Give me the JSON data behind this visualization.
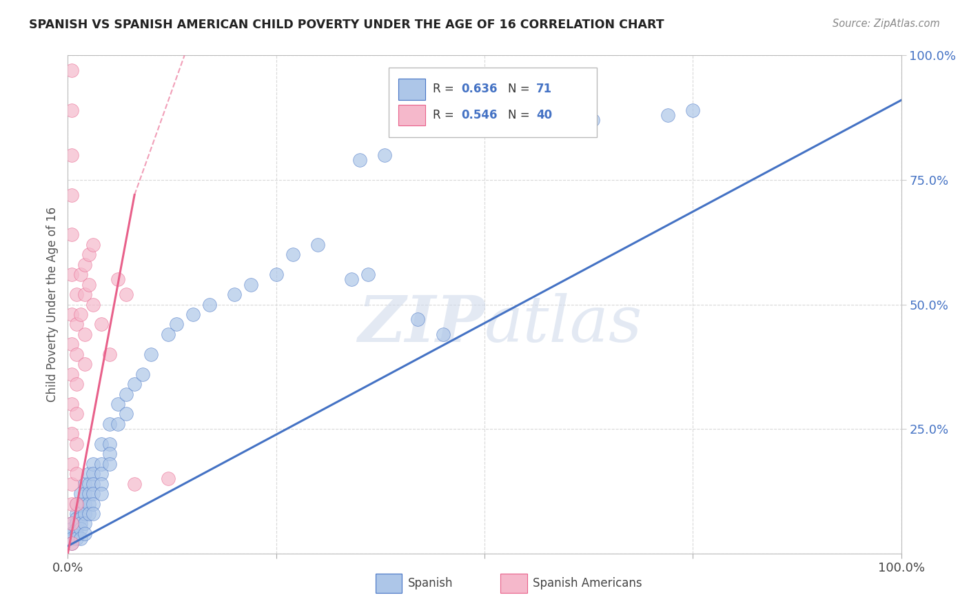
{
  "title": "SPANISH VS SPANISH AMERICAN CHILD POVERTY UNDER THE AGE OF 16 CORRELATION CHART",
  "source": "Source: ZipAtlas.com",
  "ylabel": "Child Poverty Under the Age of 16",
  "xlim": [
    0,
    1
  ],
  "ylim": [
    0,
    1
  ],
  "blue_R": 0.636,
  "blue_N": 71,
  "pink_R": 0.546,
  "pink_N": 40,
  "blue_color": "#adc6e8",
  "pink_color": "#f5b8cb",
  "blue_line_color": "#4472c4",
  "pink_line_color": "#e8608a",
  "background_color": "#ffffff",
  "grid_color": "#d8d8d8",
  "watermark_color": "#cdd8ea",
  "blue_scatter": [
    [
      0.005,
      0.06
    ],
    [
      0.005,
      0.05
    ],
    [
      0.005,
      0.04
    ],
    [
      0.005,
      0.03
    ],
    [
      0.005,
      0.02
    ],
    [
      0.01,
      0.1
    ],
    [
      0.01,
      0.08
    ],
    [
      0.01,
      0.07
    ],
    [
      0.01,
      0.06
    ],
    [
      0.01,
      0.05
    ],
    [
      0.01,
      0.04
    ],
    [
      0.01,
      0.03
    ],
    [
      0.015,
      0.12
    ],
    [
      0.015,
      0.1
    ],
    [
      0.015,
      0.08
    ],
    [
      0.015,
      0.07
    ],
    [
      0.015,
      0.06
    ],
    [
      0.015,
      0.05
    ],
    [
      0.015,
      0.03
    ],
    [
      0.02,
      0.14
    ],
    [
      0.02,
      0.12
    ],
    [
      0.02,
      0.1
    ],
    [
      0.02,
      0.08
    ],
    [
      0.02,
      0.06
    ],
    [
      0.02,
      0.04
    ],
    [
      0.025,
      0.16
    ],
    [
      0.025,
      0.14
    ],
    [
      0.025,
      0.12
    ],
    [
      0.025,
      0.1
    ],
    [
      0.025,
      0.08
    ],
    [
      0.03,
      0.18
    ],
    [
      0.03,
      0.16
    ],
    [
      0.03,
      0.14
    ],
    [
      0.03,
      0.12
    ],
    [
      0.03,
      0.1
    ],
    [
      0.03,
      0.08
    ],
    [
      0.04,
      0.22
    ],
    [
      0.04,
      0.18
    ],
    [
      0.04,
      0.16
    ],
    [
      0.04,
      0.14
    ],
    [
      0.04,
      0.12
    ],
    [
      0.05,
      0.26
    ],
    [
      0.05,
      0.22
    ],
    [
      0.05,
      0.2
    ],
    [
      0.05,
      0.18
    ],
    [
      0.06,
      0.3
    ],
    [
      0.06,
      0.26
    ],
    [
      0.07,
      0.32
    ],
    [
      0.07,
      0.28
    ],
    [
      0.08,
      0.34
    ],
    [
      0.09,
      0.36
    ],
    [
      0.1,
      0.4
    ],
    [
      0.12,
      0.44
    ],
    [
      0.13,
      0.46
    ],
    [
      0.15,
      0.48
    ],
    [
      0.17,
      0.5
    ],
    [
      0.2,
      0.52
    ],
    [
      0.22,
      0.54
    ],
    [
      0.25,
      0.56
    ],
    [
      0.27,
      0.6
    ],
    [
      0.3,
      0.62
    ],
    [
      0.35,
      0.79
    ],
    [
      0.38,
      0.8
    ],
    [
      0.6,
      0.86
    ],
    [
      0.63,
      0.87
    ],
    [
      0.72,
      0.88
    ],
    [
      0.75,
      0.89
    ],
    [
      0.34,
      0.55
    ],
    [
      0.36,
      0.56
    ],
    [
      0.42,
      0.47
    ],
    [
      0.45,
      0.44
    ]
  ],
  "pink_scatter": [
    [
      0.005,
      0.97
    ],
    [
      0.005,
      0.89
    ],
    [
      0.005,
      0.8
    ],
    [
      0.005,
      0.72
    ],
    [
      0.005,
      0.64
    ],
    [
      0.005,
      0.56
    ],
    [
      0.005,
      0.48
    ],
    [
      0.005,
      0.42
    ],
    [
      0.005,
      0.36
    ],
    [
      0.005,
      0.3
    ],
    [
      0.005,
      0.24
    ],
    [
      0.005,
      0.18
    ],
    [
      0.005,
      0.14
    ],
    [
      0.005,
      0.1
    ],
    [
      0.005,
      0.06
    ],
    [
      0.005,
      0.02
    ],
    [
      0.01,
      0.52
    ],
    [
      0.01,
      0.46
    ],
    [
      0.01,
      0.4
    ],
    [
      0.01,
      0.34
    ],
    [
      0.01,
      0.28
    ],
    [
      0.01,
      0.22
    ],
    [
      0.01,
      0.16
    ],
    [
      0.01,
      0.1
    ],
    [
      0.015,
      0.56
    ],
    [
      0.015,
      0.48
    ],
    [
      0.02,
      0.58
    ],
    [
      0.02,
      0.52
    ],
    [
      0.02,
      0.44
    ],
    [
      0.02,
      0.38
    ],
    [
      0.025,
      0.6
    ],
    [
      0.025,
      0.54
    ],
    [
      0.03,
      0.62
    ],
    [
      0.03,
      0.5
    ],
    [
      0.04,
      0.46
    ],
    [
      0.05,
      0.4
    ],
    [
      0.06,
      0.55
    ],
    [
      0.07,
      0.52
    ],
    [
      0.08,
      0.14
    ],
    [
      0.12,
      0.15
    ]
  ],
  "blue_line_x0": 0.0,
  "blue_line_y0": 0.015,
  "blue_line_x1": 1.0,
  "blue_line_y1": 0.91,
  "pink_line_solid_x0": 0.0,
  "pink_line_solid_y0": 0.0,
  "pink_line_solid_x1": 0.08,
  "pink_line_solid_y1": 0.72,
  "pink_line_dashed_x0": 0.08,
  "pink_line_dashed_y0": 0.72,
  "pink_line_dashed_x1": 0.14,
  "pink_line_dashed_y1": 1.0
}
